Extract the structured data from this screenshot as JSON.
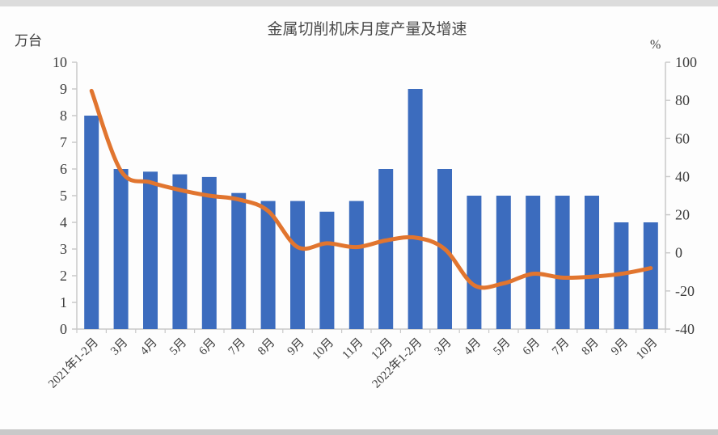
{
  "chart_data": {
    "type": "bar+line",
    "title": "金属切削机床月度产量及增速",
    "categories": [
      "2021年1-2月",
      "3月",
      "4月",
      "5月",
      "6月",
      "7月",
      "8月",
      "9月",
      "10月",
      "11月",
      "12月",
      "2022年1-2月",
      "3月",
      "4月",
      "5月",
      "6月",
      "7月",
      "8月",
      "9月",
      "10月"
    ],
    "bars": {
      "axis": "left",
      "values": [
        8.0,
        6.0,
        5.9,
        5.8,
        5.7,
        5.1,
        4.8,
        4.8,
        4.4,
        4.8,
        6.0,
        9.0,
        6.0,
        5.0,
        5.0,
        5.0,
        5.0,
        5.0,
        4.0,
        4.0
      ]
    },
    "line": {
      "axis": "right",
      "values": [
        85,
        43,
        37,
        33,
        30,
        28,
        22,
        3,
        5,
        3,
        6.5,
        8,
        2,
        -17,
        -16,
        -11,
        -13,
        -12.5,
        -11,
        -8
      ]
    },
    "left_axis": {
      "label": "万台",
      "min": 0,
      "max": 10,
      "ticks": [
        10,
        9,
        8,
        7,
        6,
        5,
        4,
        3,
        2,
        1,
        0
      ]
    },
    "right_axis": {
      "label": "%",
      "min": -40,
      "max": 100,
      "ticks": [
        100,
        80,
        60,
        40,
        20,
        0,
        -20,
        -40
      ]
    },
    "grid": false,
    "legend_position": "none",
    "colors": {
      "bar": "#3c6cbe",
      "line": "#e1752f",
      "axis": "#c9c9c9",
      "text": "#3d3d3d",
      "title": "#4a4a4a"
    }
  }
}
